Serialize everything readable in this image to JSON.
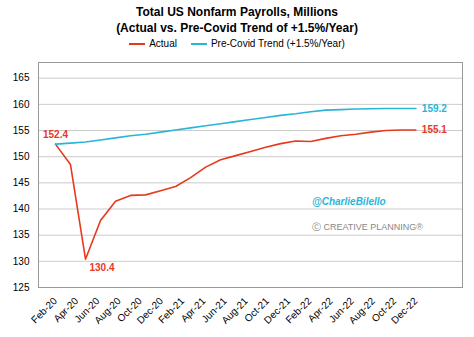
{
  "chart_data": {
    "type": "line",
    "title": "Total US Nonfarm Payrolls, Millions",
    "subtitle": "(Actual vs. Pre-Covid Trend of +1.5%/Year)",
    "x": [
      0,
      0.708333,
      1.416667,
      2.125,
      2.833333,
      3.541667,
      4.25,
      4.958333,
      5.666667,
      6.375,
      7.083333,
      7.791667,
      8.5,
      9.208333,
      9.916667,
      10.625,
      11.333333,
      12.041667,
      12.75,
      13.458333,
      14.166667,
      14.875,
      15.583333,
      16.291667,
      17
    ],
    "series": [
      {
        "name": "Actual",
        "color": "#e8391d",
        "values": [
          152.4,
          148.5,
          130.4,
          137.8,
          141.5,
          142.6,
          142.7,
          143.5,
          144.3,
          146.0,
          148.0,
          149.4,
          150.2,
          151.0,
          151.8,
          152.5,
          153.0,
          152.9,
          153.5,
          154.0,
          154.3,
          154.7,
          155.0,
          155.1,
          155.1
        ],
        "value_labels": [
          "152.4",
          null,
          "130.4",
          null,
          null,
          null,
          null,
          null,
          null,
          null,
          null,
          null,
          null,
          null,
          null,
          null,
          null,
          null,
          null,
          null,
          null,
          null,
          null,
          null,
          "155.1"
        ]
      },
      {
        "name": "Pre-Covid Trend (+1.5%/Year)",
        "color": "#29b5d8",
        "values": [
          152.4,
          152.6,
          152.8,
          153.2,
          153.6,
          154.0,
          154.3,
          154.7,
          155.1,
          155.5,
          155.9,
          156.3,
          156.7,
          157.1,
          157.5,
          157.9,
          158.2,
          158.6,
          158.9,
          159.0,
          159.1,
          159.15,
          159.2,
          159.2,
          159.2
        ],
        "value_labels": [
          null,
          null,
          null,
          null,
          null,
          null,
          null,
          null,
          null,
          null,
          null,
          null,
          null,
          null,
          null,
          null,
          null,
          null,
          null,
          null,
          null,
          null,
          null,
          null,
          "159.2"
        ]
      }
    ],
    "xlim": [
      -0.8,
      19.2
    ],
    "xticks": [
      {
        "value": 0,
        "label": "Feb-20"
      },
      {
        "value": 1,
        "label": "Apr-20"
      },
      {
        "value": 2,
        "label": "Jun-20"
      },
      {
        "value": 3,
        "label": "Aug-20"
      },
      {
        "value": 4,
        "label": "Oct-20"
      },
      {
        "value": 5,
        "label": "Dec-20"
      },
      {
        "value": 6,
        "label": "Feb-21"
      },
      {
        "value": 7,
        "label": "Apr-21"
      },
      {
        "value": 8,
        "label": "Jun-21"
      },
      {
        "value": 9,
        "label": "Aug-21"
      },
      {
        "value": 10,
        "label": "Oct-21"
      },
      {
        "value": 11,
        "label": "Dec-21"
      },
      {
        "value": 12,
        "label": "Feb-22"
      },
      {
        "value": 13,
        "label": "Apr-22"
      },
      {
        "value": 14,
        "label": "Jun-22"
      },
      {
        "value": 15,
        "label": "Aug-22"
      },
      {
        "value": 16,
        "label": "Oct-22"
      },
      {
        "value": 17,
        "label": "Dec-22"
      }
    ],
    "ylim": [
      125,
      168
    ],
    "yticks": [
      125,
      130,
      135,
      140,
      145,
      150,
      155,
      160,
      165
    ],
    "grid": true,
    "legend": "top",
    "annotations": [
      "@CharlieBilello",
      "Ⓒ CREATIVE PLANNING®"
    ]
  }
}
